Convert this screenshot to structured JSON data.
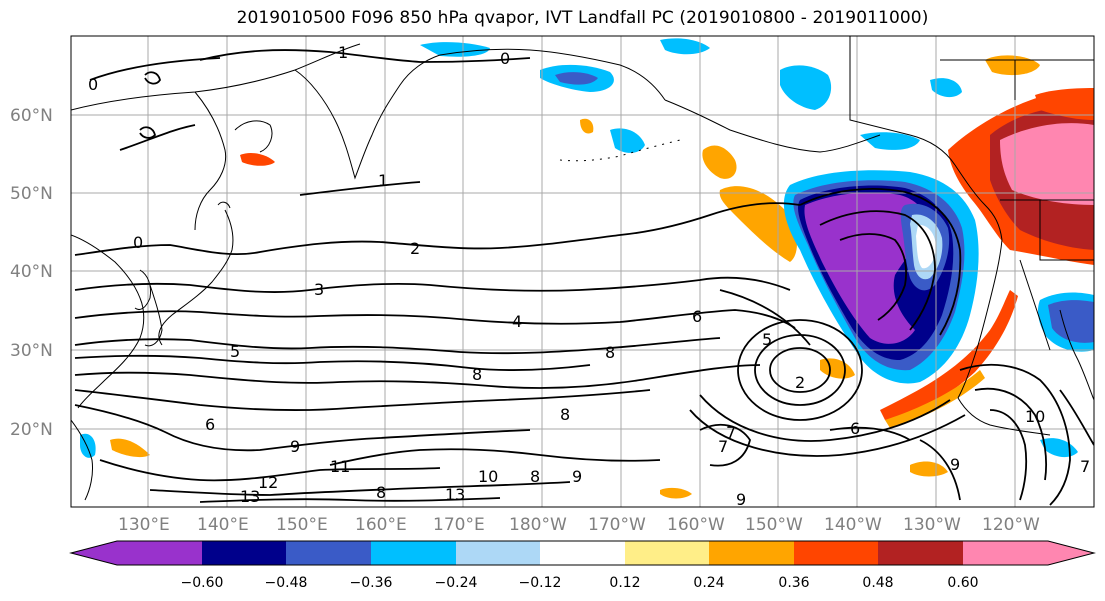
{
  "title": "2019010500 F096 850 hPa qvapor, IVT Landfall PC (2019010800 - 2019011000)",
  "lat_labels": [
    "60°N",
    "50°N",
    "40°N",
    "30°N",
    "20°N"
  ],
  "lon_labels": [
    "130°E",
    "140°E",
    "150°E",
    "160°E",
    "170°E",
    "180°W",
    "170°W",
    "160°W",
    "150°W",
    "140°W",
    "130°W",
    "120°W"
  ],
  "colorbar": {
    "colors": [
      "#9932CC",
      "#00008B",
      "#3A5BC7",
      "#00BFFF",
      "#ADD8F6",
      "#FFFFFF",
      "#FFEE88",
      "#FFA500",
      "#FF4500",
      "#B22222",
      "#FF86B0"
    ],
    "tick_labels": [
      "−0.60",
      "−0.48",
      "−0.36",
      "−0.24",
      "−0.12",
      "0.12",
      "0.24",
      "0.36",
      "0.48",
      "0.60"
    ]
  },
  "contour_labels": [
    {
      "text": "1"
    },
    {
      "text": "0"
    },
    {
      "text": "0"
    },
    {
      "text": "0"
    },
    {
      "text": "1"
    },
    {
      "text": "2"
    },
    {
      "text": "3"
    },
    {
      "text": "4"
    },
    {
      "text": "5"
    },
    {
      "text": "6"
    },
    {
      "text": "8"
    },
    {
      "text": "8"
    },
    {
      "text": "5"
    },
    {
      "text": "2"
    },
    {
      "text": "6"
    },
    {
      "text": "9"
    },
    {
      "text": "7"
    },
    {
      "text": "8"
    },
    {
      "text": "10"
    },
    {
      "text": "11"
    },
    {
      "text": "13"
    },
    {
      "text": "12"
    },
    {
      "text": "13"
    },
    {
      "text": "9"
    },
    {
      "text": "10"
    },
    {
      "text": "7"
    },
    {
      "text": "9"
    },
    {
      "text": "6"
    },
    {
      "text": "7"
    },
    {
      "text": "9"
    },
    {
      "text": "8"
    },
    {
      "text": "8"
    }
  ]
}
